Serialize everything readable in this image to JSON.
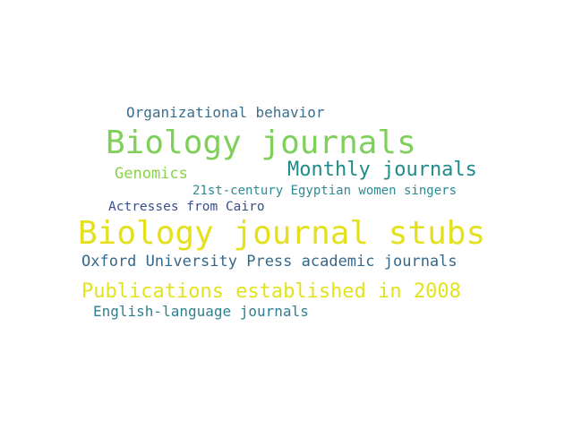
{
  "wordcloud": {
    "words": [
      {
        "text": "Organizational behavior",
        "color": "#3b6f8e"
      },
      {
        "text": "Biology journals",
        "color": "#7fd05a"
      },
      {
        "text": "Genomics",
        "color": "#8ad24a"
      },
      {
        "text": "Monthly journals",
        "color": "#1f8c8b"
      },
      {
        "text": "21st-century Egyptian women singers",
        "color": "#2c8a94"
      },
      {
        "text": "Actresses from Cairo",
        "color": "#3a4f8c"
      },
      {
        "text": "Biology journal stubs",
        "color": "#e4e01e"
      },
      {
        "text": "Oxford University Press academic journals",
        "color": "#33688c"
      },
      {
        "text": "Publications established in 2008",
        "color": "#e2e31e"
      },
      {
        "text": "English-language journals",
        "color": "#2e7f90"
      }
    ]
  }
}
